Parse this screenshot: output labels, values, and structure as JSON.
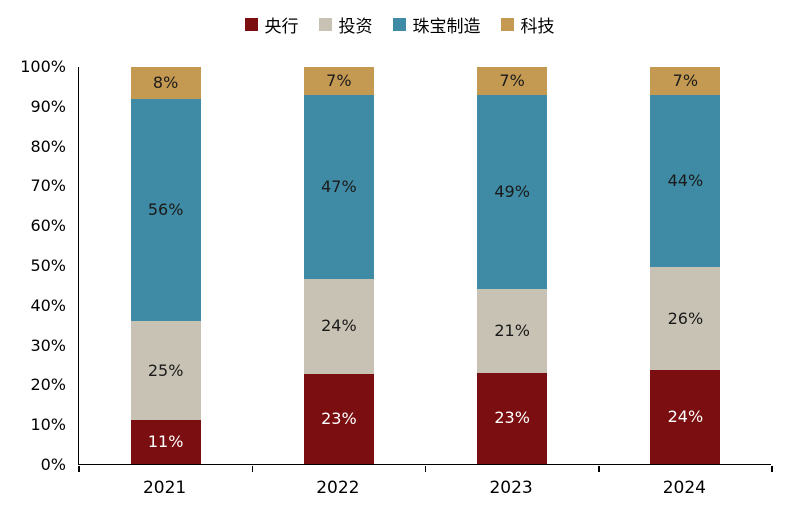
{
  "chart_data": {
    "type": "bar",
    "variant": "stacked-100",
    "title": "",
    "categories": [
      "2021",
      "2022",
      "2023",
      "2024"
    ],
    "series": [
      {
        "name": "央行",
        "color": "#7A0E10",
        "label_color": "#FFFFFF",
        "values": [
          11,
          23,
          23,
          24
        ]
      },
      {
        "name": "投资",
        "color": "#C7C2B3",
        "label_color": "#1A1A1A",
        "values": [
          25,
          24,
          21,
          26
        ]
      },
      {
        "name": "珠宝制造",
        "color": "#3F8AA4",
        "label_color": "#1A1A1A",
        "values": [
          56,
          47,
          49,
          44
        ]
      },
      {
        "name": "科技",
        "color": "#C49A53",
        "label_color": "#1A1A1A",
        "values": [
          8,
          7,
          7,
          7
        ]
      }
    ],
    "value_suffix": "%",
    "y_axis": {
      "ticks": [
        "100%",
        "90%",
        "80%",
        "70%",
        "60%",
        "50%",
        "40%",
        "30%",
        "20%",
        "10%",
        "0%"
      ],
      "min": 0,
      "max": 100
    },
    "legend": {
      "position": "top",
      "items": [
        "央行",
        "投资",
        "珠宝制造",
        "科技"
      ]
    },
    "grid": false,
    "axis_color": "#000000",
    "background": "#FFFFFF"
  }
}
